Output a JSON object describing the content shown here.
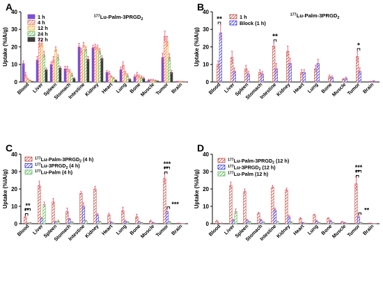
{
  "colors": {
    "1h": "#7b4fd6",
    "4h": "#f05a4a",
    "12h": "#f5a623",
    "24h": "#49b649",
    "72h": "#3d3d3d",
    "block": "#2e2ee0",
    "palm3prgd2": "#c0392b",
    "3prgd2": "#2e2ee0",
    "palm": "#49b649",
    "error_bar": "#e64a6e",
    "axis": "#000000"
  },
  "chart_data": [
    {
      "panel": "A",
      "type": "bar",
      "title": "177Lu-Palm-3PRGD2",
      "ylabel": "Uptake (%IA/g)",
      "ylim": [
        0,
        40
      ],
      "yticks": [
        0,
        10,
        20,
        30,
        40
      ],
      "categories": [
        "Blood",
        "Liver",
        "Spleen",
        "Stomach",
        "Intestine",
        "Kidney",
        "Heart",
        "Lung",
        "Bone",
        "Muscle",
        "Tumor",
        "Brain"
      ],
      "legend_position": "top-left",
      "series": [
        {
          "name": "1 h",
          "style": "solid",
          "color_key": "1h",
          "values": [
            10.5,
            12.5,
            10.0,
            7.5,
            20.0,
            19.5,
            5.5,
            7.0,
            3.0,
            1.0,
            14.0,
            0.3
          ],
          "errors": [
            1.5,
            2.0,
            1.5,
            1.5,
            2.0,
            1.5,
            1.0,
            1.5,
            1.0,
            0.5,
            2.5,
            0.1
          ]
        },
        {
          "name": "4 h",
          "style": "hatch",
          "color_key": "4h",
          "values": [
            4.0,
            22.0,
            12.5,
            7.5,
            17.5,
            20.0,
            5.0,
            9.5,
            4.0,
            1.0,
            26.0,
            0.3
          ],
          "errors": [
            1.5,
            2.5,
            2.0,
            1.5,
            1.5,
            1.5,
            1.0,
            2.0,
            1.5,
            0.5,
            3.0,
            0.1
          ]
        },
        {
          "name": "12 h",
          "style": "hatch",
          "color_key": "12h",
          "values": [
            1.5,
            22.0,
            18.5,
            6.0,
            21.0,
            19.5,
            3.0,
            5.0,
            3.0,
            1.0,
            23.0,
            0.3
          ],
          "errors": [
            0.5,
            2.0,
            1.5,
            1.0,
            1.5,
            1.5,
            0.5,
            1.0,
            1.0,
            0.5,
            3.0,
            0.1
          ]
        },
        {
          "name": "24 h",
          "style": "hatch",
          "color_key": "24h",
          "values": [
            0.8,
            15.5,
            14.0,
            4.0,
            18.5,
            17.5,
            2.0,
            3.5,
            2.5,
            0.8,
            14.0,
            0.2
          ],
          "errors": [
            0.3,
            2.0,
            1.5,
            1.0,
            1.5,
            1.5,
            0.5,
            1.0,
            1.0,
            0.3,
            2.0,
            0.1
          ]
        },
        {
          "name": "72 h",
          "style": "solid",
          "color_key": "72h",
          "values": [
            0.3,
            7.0,
            8.0,
            2.0,
            13.0,
            13.5,
            1.0,
            1.5,
            2.0,
            0.5,
            5.5,
            0.1
          ],
          "errors": [
            0.1,
            1.0,
            1.0,
            0.5,
            1.5,
            1.5,
            0.3,
            0.5,
            0.8,
            0.2,
            1.0,
            0.05
          ]
        }
      ]
    },
    {
      "panel": "B",
      "type": "bar",
      "title": "177Lu-Palm-3PRGD2",
      "ylabel": "Uptake (%IA/g)",
      "ylim": [
        0,
        40
      ],
      "yticks": [
        0,
        10,
        20,
        30,
        40
      ],
      "categories": [
        "Blood",
        "Liver",
        "Spleen",
        "Stomach",
        "Intestine",
        "Kidney",
        "Heart",
        "Lung",
        "Bone",
        "Muscle",
        "Tumor",
        "Brain"
      ],
      "legend_position": "top-center",
      "series": [
        {
          "name": "1 h",
          "style": "hatch",
          "color_key": "palm3prgd2",
          "values": [
            10.0,
            14.0,
            7.5,
            5.5,
            20.5,
            17.5,
            5.5,
            7.5,
            3.0,
            1.5,
            14.5,
            0.3
          ],
          "errors": [
            2.0,
            3.5,
            2.0,
            1.5,
            2.0,
            3.0,
            1.5,
            2.0,
            1.0,
            0.5,
            3.0,
            0.1
          ]
        },
        {
          "name": "Block (1 h)",
          "style": "hatch",
          "color_key": "block",
          "values": [
            28.0,
            6.0,
            4.5,
            4.5,
            7.5,
            10.5,
            5.5,
            10.5,
            2.5,
            2.0,
            6.0,
            0.5
          ],
          "errors": [
            4.5,
            2.0,
            1.5,
            1.5,
            3.0,
            3.0,
            1.5,
            2.5,
            1.0,
            0.8,
            2.0,
            0.2
          ]
        }
      ],
      "annotations": [
        {
          "category": "Blood",
          "text": "**"
        },
        {
          "category": "Intestine",
          "text": "**"
        },
        {
          "category": "Tumor",
          "text": "*"
        }
      ]
    },
    {
      "panel": "C",
      "type": "bar",
      "ylabel": "Uptake (%IA/g)",
      "ylim": [
        0,
        40
      ],
      "yticks": [
        0,
        10,
        20,
        30,
        40
      ],
      "categories": [
        "Blood",
        "Liver",
        "Spleen",
        "Stomach",
        "Intestine",
        "Kidney",
        "Heart",
        "Lung",
        "Bone",
        "Muscle",
        "Tumor",
        "Brain"
      ],
      "legend_position": "top-left",
      "series": [
        {
          "name": "177Lu-Palm-3PRGD2 (4 h)",
          "style": "hatch",
          "color_key": "palm3prgd2",
          "values": [
            4.0,
            22.0,
            12.5,
            7.0,
            17.5,
            20.0,
            5.0,
            7.5,
            4.0,
            1.5,
            26.0,
            0.3
          ],
          "errors": [
            1.0,
            2.5,
            2.0,
            2.0,
            1.0,
            1.5,
            1.0,
            2.0,
            1.5,
            0.5,
            3.0,
            0.1
          ]
        },
        {
          "name": "177Lu-3PRGD2 (4 h)",
          "style": "hatch",
          "color_key": "3prgd2",
          "values": [
            0.3,
            3.0,
            1.0,
            2.5,
            10.0,
            5.0,
            0.8,
            1.5,
            1.0,
            0.5,
            7.0,
            0.1
          ],
          "errors": [
            0.1,
            0.5,
            0.3,
            0.5,
            2.0,
            0.8,
            0.3,
            0.5,
            0.3,
            0.2,
            1.5,
            0.05
          ]
        },
        {
          "name": "177Lu-Palm (4 h)",
          "style": "hatch",
          "color_key": "palm",
          "values": [
            0.5,
            11.0,
            1.5,
            0.8,
            1.5,
            1.0,
            0.3,
            0.8,
            0.5,
            0.2,
            1.0,
            0.1
          ],
          "errors": [
            0.2,
            1.5,
            0.5,
            0.3,
            0.5,
            0.3,
            0.1,
            0.3,
            0.2,
            0.1,
            0.3,
            0.05
          ]
        }
      ],
      "annotations": [
        {
          "category": "Blood",
          "text": "**",
          "level": "upper"
        },
        {
          "category": "Blood",
          "text": "**",
          "level": "lower"
        },
        {
          "category": "Tumor",
          "text": "***",
          "level": "upper"
        },
        {
          "category": "Tumor",
          "text": "**",
          "level": "lower"
        },
        {
          "category": "Tumor",
          "text": "***",
          "level": "side"
        }
      ]
    },
    {
      "panel": "D",
      "type": "bar",
      "ylabel": "Uptake (%IA/g)",
      "ylim": [
        0,
        40
      ],
      "yticks": [
        0,
        10,
        20,
        30,
        40
      ],
      "categories": [
        "Blood",
        "Liver",
        "Spleen",
        "Stomach",
        "Intestine",
        "Kidney",
        "Heart",
        "Lung",
        "Bone",
        "Muscle",
        "Tumor",
        "Brain"
      ],
      "legend_position": "top-left",
      "series": [
        {
          "name": "177Lu-Palm-3PRGD2 (12 h)",
          "style": "hatch",
          "color_key": "palm3prgd2",
          "values": [
            1.5,
            22.0,
            18.5,
            6.0,
            21.0,
            19.5,
            3.0,
            5.0,
            3.0,
            1.0,
            23.0,
            0.3
          ],
          "errors": [
            0.5,
            2.0,
            1.5,
            0.5,
            1.0,
            1.0,
            0.5,
            0.5,
            0.5,
            0.3,
            4.0,
            0.1
          ]
        },
        {
          "name": "177Lu-3PRGD2 (12 h)",
          "style": "hatch",
          "color_key": "3prgd2",
          "values": [
            0.2,
            2.0,
            2.0,
            2.0,
            8.0,
            4.0,
            0.5,
            1.5,
            1.5,
            0.5,
            4.0,
            0.1
          ],
          "errors": [
            0.05,
            0.5,
            0.5,
            0.5,
            1.0,
            0.8,
            0.2,
            0.5,
            0.5,
            0.2,
            1.0,
            0.05
          ]
        },
        {
          "name": "177Lu-Palm (12 h)",
          "style": "hatch",
          "color_key": "palm",
          "values": [
            0.3,
            7.0,
            1.0,
            0.8,
            1.0,
            0.8,
            0.3,
            0.5,
            0.5,
            0.2,
            0.5,
            0.1
          ],
          "errors": [
            0.1,
            1.5,
            0.3,
            0.3,
            0.3,
            0.3,
            0.1,
            0.2,
            0.2,
            0.1,
            0.2,
            0.05
          ]
        }
      ],
      "annotations": [
        {
          "category": "Tumor",
          "text": "***",
          "level": "upper"
        },
        {
          "category": "Tumor",
          "text": "**",
          "level": "lower"
        },
        {
          "category": "Tumor",
          "text": "**",
          "level": "side"
        }
      ]
    }
  ]
}
